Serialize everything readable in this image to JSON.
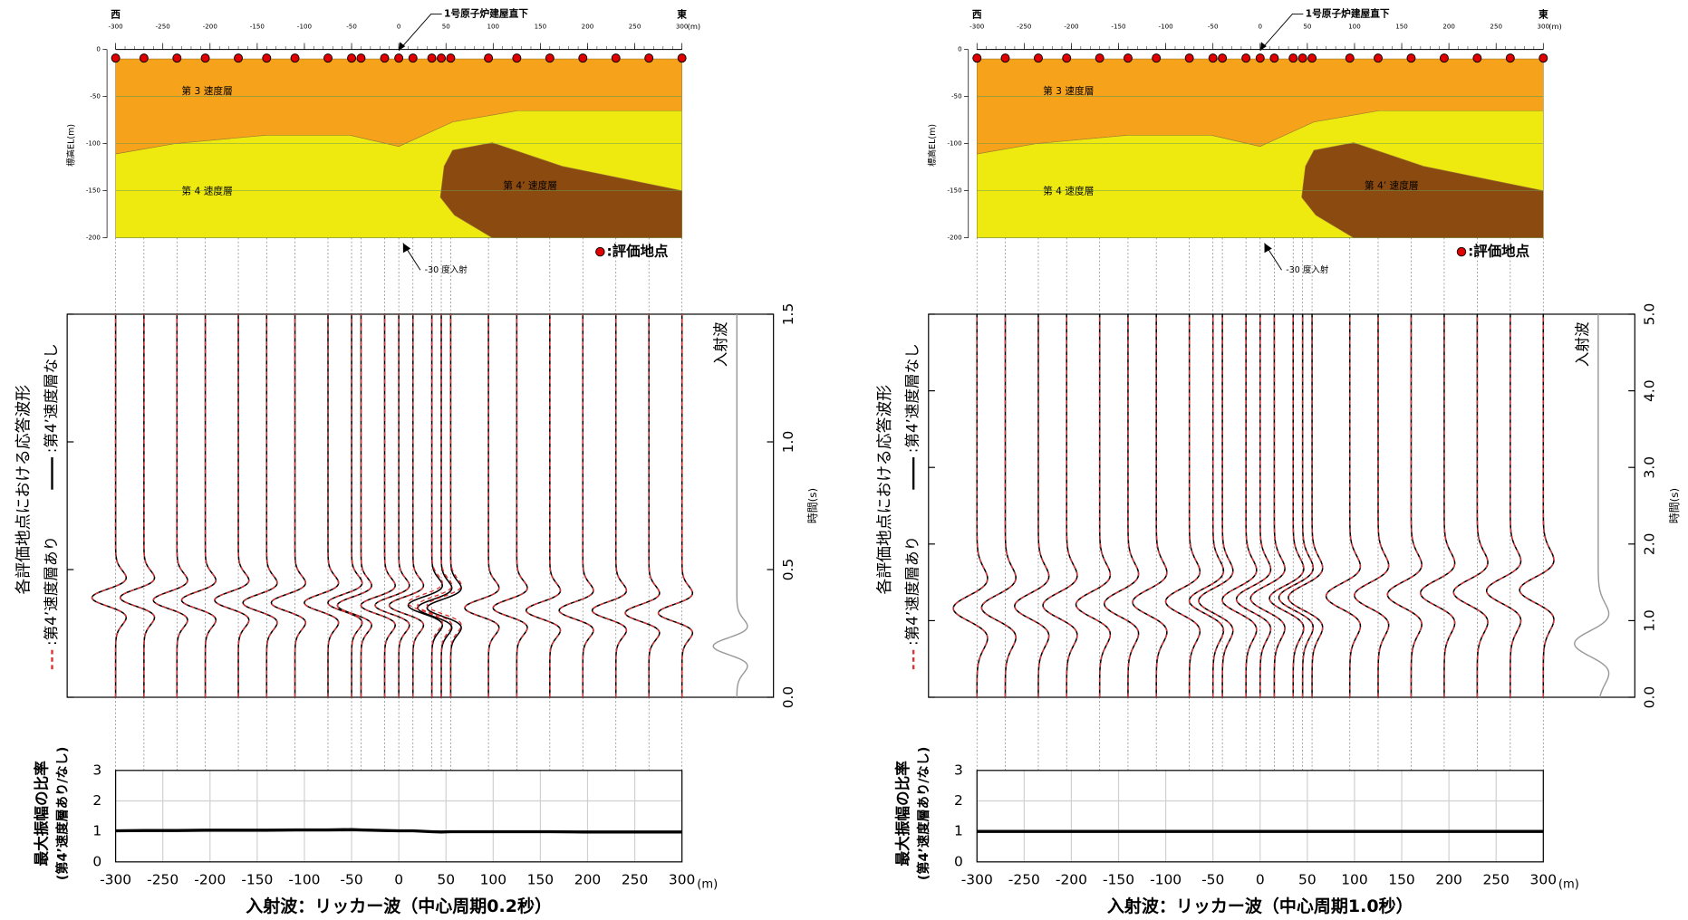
{
  "chart_data": [
    {
      "type": "section",
      "x_start_label": "西",
      "x_end_label": "東",
      "x_unit": "(m)",
      "ylabel": "標高EL(m)",
      "xlim": [
        -300,
        300
      ],
      "ylim": [
        -200,
        0
      ],
      "xticks": [
        -300,
        -250,
        -200,
        -150,
        -100,
        -50,
        0,
        50,
        100,
        150,
        200,
        250,
        300
      ],
      "yticks": [
        0,
        -50,
        -100,
        -150,
        -200
      ],
      "grid": true,
      "annotations": [
        "1号原子炉建屋直下",
        "-30 度入射"
      ],
      "points": {
        "label": ":評価地点",
        "color": "#e00000",
        "x": [
          -300,
          -270,
          -235,
          -205,
          -170,
          -140,
          -110,
          -75,
          -50,
          -40,
          -15,
          0,
          15,
          35,
          45,
          55,
          95,
          125,
          160,
          195,
          230,
          265,
          300
        ]
      },
      "layers": [
        {
          "name": "第 3 速度層",
          "color": "#f7a21b",
          "x": [
            -300,
            300,
            300,
            126,
            57,
            0,
            -52,
            -140,
            -237,
            -300
          ],
          "y": [
            -10,
            -10,
            -65,
            -65,
            -77,
            -103,
            -91,
            -91,
            -100,
            -111
          ]
        },
        {
          "name": "第 4 速度層",
          "color": "#eeea10",
          "x": [
            -300,
            -237,
            -140,
            -52,
            0,
            57,
            126,
            300,
            300,
            -300
          ],
          "y": [
            -111,
            -100,
            -91,
            -91,
            -103,
            -77,
            -65,
            -65,
            -200,
            -200
          ]
        },
        {
          "name": "第 4’ 速度層",
          "color": "#8b4a10",
          "x": [
            57,
            99,
            173,
            300,
            300,
            99,
            59,
            44,
            48
          ],
          "y": [
            -107,
            -99,
            -124,
            -150,
            -200,
            -200,
            -176,
            -157,
            -124
          ]
        }
      ]
    },
    {
      "type": "waveform",
      "title": "各評価地点における応答波形",
      "ylabel": "時間(s)",
      "center_period": 0.2,
      "ylim": [
        0,
        1.5
      ],
      "yticks": [
        {
          "value": 0,
          "label": "0.0"
        },
        {
          "value": 0.5,
          "label": "0.5"
        },
        {
          "value": 1,
          "label": "1.0"
        },
        {
          "value": 1.5,
          "label": "1.5"
        }
      ],
      "x": [
        -300,
        -270,
        -235,
        -205,
        -170,
        -140,
        -110,
        -75,
        -50,
        -40,
        -15,
        0,
        15,
        35,
        45,
        55,
        95,
        125,
        160,
        195,
        230,
        265,
        300
      ],
      "series": [
        {
          "name": ":第4’速度層あり",
          "color": "#e03030",
          "values": [
            0.39,
            0.39,
            0.38,
            0.38,
            0.38,
            0.37,
            0.37,
            0.37,
            0.37,
            0.36,
            0.36,
            0.36,
            0.36,
            0.37,
            0.36,
            0.36,
            0.35,
            0.35,
            0.34,
            0.34,
            0.34,
            0.33,
            0.33
          ]
        },
        {
          "name": ":第4’速度層なし",
          "color": "#000000",
          "values": [
            0.39,
            0.39,
            0.38,
            0.38,
            0.38,
            0.37,
            0.37,
            0.37,
            0.37,
            0.36,
            0.36,
            0.36,
            0.36,
            0.36,
            0.35,
            0.35,
            0.35,
            0.35,
            0.34,
            0.34,
            0.34,
            0.33,
            0.33
          ]
        }
      ],
      "incident": {
        "label": "入射波",
        "value": 0.2,
        "color": "#999999"
      }
    },
    {
      "type": "line",
      "title": "入射波：リッカー波（中心周期0.2秒）",
      "ylabel": "最大振幅の比率",
      "ylabel2": "(第4’速度層あり/なし)",
      "x_unit": "(m)",
      "xlim": [
        -300,
        300
      ],
      "ylim": [
        0,
        3
      ],
      "xticks": [
        -300,
        -250,
        -200,
        -150,
        -100,
        -50,
        0,
        50,
        100,
        150,
        200,
        250,
        300
      ],
      "yticks": [
        0,
        1,
        2,
        3
      ],
      "grid": true,
      "color": "#000000",
      "x": [
        -300,
        -270,
        -235,
        -205,
        -170,
        -140,
        -110,
        -75,
        -50,
        -40,
        -15,
        0,
        15,
        35,
        45,
        55,
        95,
        125,
        160,
        195,
        230,
        265,
        300
      ],
      "values": [
        1.02,
        1.03,
        1.03,
        1.04,
        1.04,
        1.04,
        1.05,
        1.05,
        1.06,
        1.05,
        1.03,
        1.02,
        1.02,
        0.99,
        0.98,
        0.99,
        0.99,
        0.99,
        0.99,
        0.98,
        0.98,
        0.98,
        0.98
      ]
    },
    {
      "type": "section",
      "x_start_label": "西",
      "x_end_label": "東",
      "x_unit": "(m)",
      "ylabel": "標高EL(m)",
      "xlim": [
        -300,
        300
      ],
      "ylim": [
        -200,
        0
      ],
      "xticks": [
        -300,
        -250,
        -200,
        -150,
        -100,
        -50,
        0,
        50,
        100,
        150,
        200,
        250,
        300
      ],
      "yticks": [
        0,
        -50,
        -100,
        -150,
        -200
      ],
      "grid": true,
      "annotations": [
        "1号原子炉建屋直下",
        "-30 度入射"
      ],
      "points": {
        "label": ":評価地点",
        "color": "#e00000",
        "x": [
          -300,
          -270,
          -235,
          -205,
          -170,
          -140,
          -110,
          -75,
          -50,
          -40,
          -15,
          0,
          15,
          35,
          45,
          55,
          95,
          125,
          160,
          195,
          230,
          265,
          300
        ]
      },
      "layers": [
        {
          "name": "第 3 速度層",
          "color": "#f7a21b",
          "x": [
            -300,
            300,
            300,
            126,
            57,
            0,
            -52,
            -140,
            -237,
            -300
          ],
          "y": [
            -10,
            -10,
            -65,
            -65,
            -77,
            -103,
            -91,
            -91,
            -100,
            -111
          ]
        },
        {
          "name": "第 4 速度層",
          "color": "#eeea10",
          "x": [
            -300,
            -237,
            -140,
            -52,
            0,
            57,
            126,
            300,
            300,
            -300
          ],
          "y": [
            -111,
            -100,
            -91,
            -91,
            -103,
            -77,
            -65,
            -65,
            -200,
            -200
          ]
        },
        {
          "name": "第 4’ 速度層",
          "color": "#8b4a10",
          "x": [
            57,
            99,
            173,
            300,
            300,
            99,
            59,
            44,
            48
          ],
          "y": [
            -107,
            -99,
            -124,
            -150,
            -200,
            -200,
            -176,
            -157,
            -124
          ]
        }
      ]
    },
    {
      "type": "waveform",
      "title": "各評価地点における応答波形",
      "ylabel": "時間(s)",
      "center_period": 1.0,
      "ylim": [
        0,
        5
      ],
      "yticks": [
        {
          "value": 0,
          "label": "0.0"
        },
        {
          "value": 1,
          "label": "1.0"
        },
        {
          "value": 2,
          "label": "2.0"
        },
        {
          "value": 3,
          "label": "3.0"
        },
        {
          "value": 4,
          "label": "4.0"
        },
        {
          "value": 5,
          "label": "5.0"
        }
      ],
      "x": [
        -300,
        -270,
        -235,
        -205,
        -170,
        -140,
        -110,
        -75,
        -50,
        -40,
        -15,
        0,
        15,
        35,
        45,
        55,
        95,
        125,
        160,
        195,
        230,
        265,
        300
      ],
      "series": [
        {
          "name": ":第4’速度層あり",
          "color": "#e03030",
          "values": [
            1.16,
            1.17,
            1.19,
            1.2,
            1.21,
            1.22,
            1.24,
            1.25,
            1.26,
            1.26,
            1.27,
            1.28,
            1.29,
            1.29,
            1.3,
            1.3,
            1.32,
            1.33,
            1.34,
            1.36,
            1.37,
            1.39,
            1.4
          ]
        },
        {
          "name": ":第4’速度層なし",
          "color": "#000000",
          "values": [
            1.16,
            1.17,
            1.19,
            1.2,
            1.21,
            1.22,
            1.24,
            1.25,
            1.26,
            1.26,
            1.27,
            1.28,
            1.29,
            1.29,
            1.3,
            1.3,
            1.32,
            1.33,
            1.34,
            1.36,
            1.37,
            1.39,
            1.4
          ]
        }
      ],
      "incident": {
        "label": "入射波",
        "value": 0.7,
        "color": "#999999"
      }
    },
    {
      "type": "line",
      "title": "入射波：リッカー波（中心周期1.0秒）",
      "ylabel": "最大振幅の比率",
      "ylabel2": "(第4’速度層あり/なし)",
      "x_unit": "(m)",
      "xlim": [
        -300,
        300
      ],
      "ylim": [
        0,
        3
      ],
      "xticks": [
        -300,
        -250,
        -200,
        -150,
        -100,
        -50,
        0,
        50,
        100,
        150,
        200,
        250,
        300
      ],
      "yticks": [
        0,
        1,
        2,
        3
      ],
      "grid": true,
      "color": "#000000",
      "x": [
        -300,
        -270,
        -235,
        -205,
        -170,
        -140,
        -110,
        -75,
        -50,
        -40,
        -15,
        0,
        15,
        35,
        45,
        55,
        95,
        125,
        160,
        195,
        230,
        265,
        300
      ],
      "values": [
        1,
        1,
        1,
        1,
        1,
        1,
        1,
        1,
        1,
        1,
        1,
        1,
        1,
        1,
        1,
        1,
        1,
        1,
        1,
        1,
        1,
        1,
        1
      ]
    }
  ]
}
